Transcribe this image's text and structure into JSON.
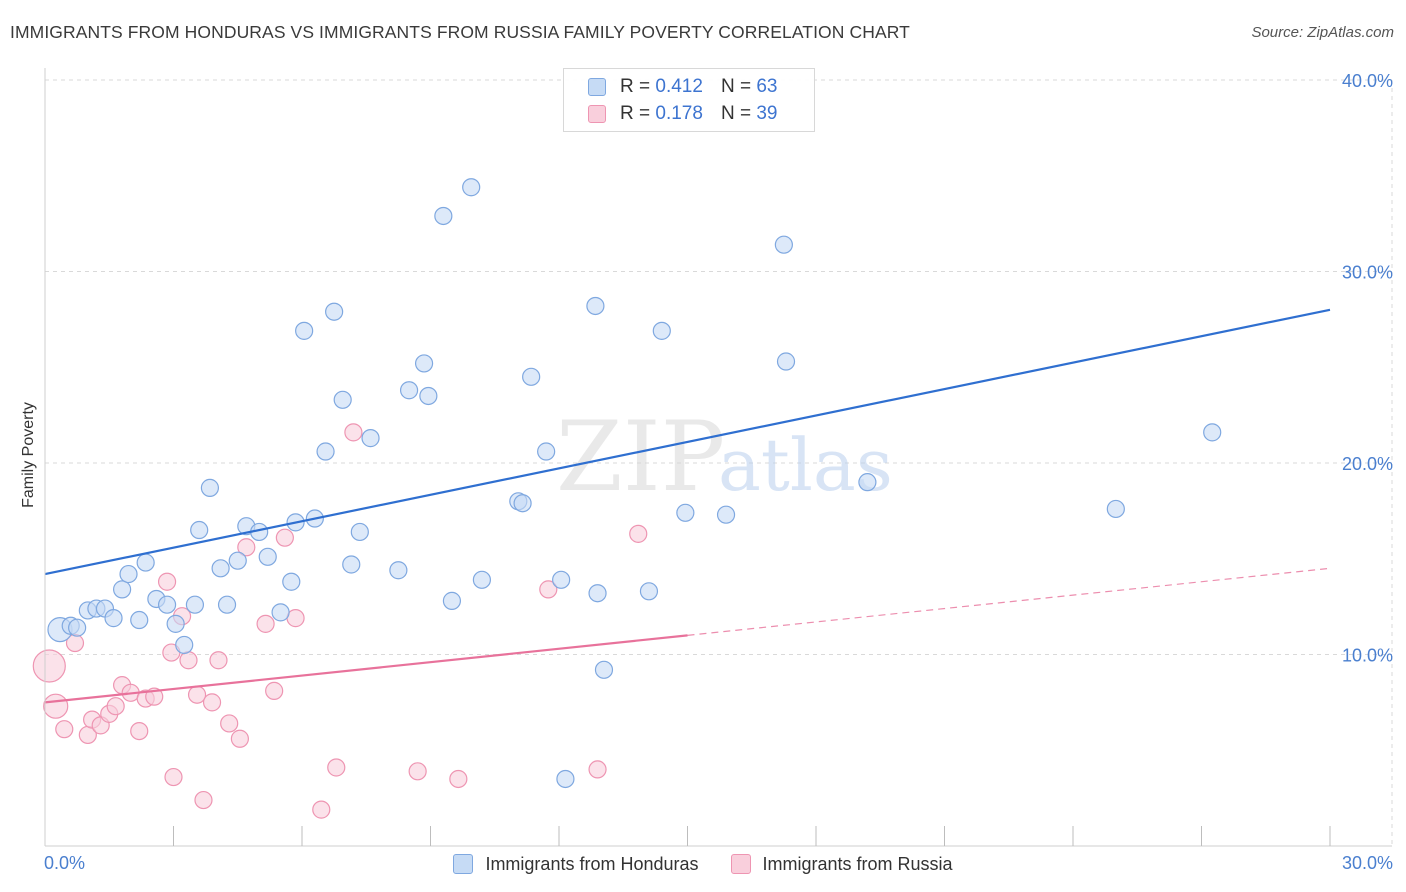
{
  "header": {
    "title": "IMMIGRANTS FROM HONDURAS VS IMMIGRANTS FROM RUSSIA FAMILY POVERTY CORRELATION CHART",
    "source": "Source: ZipAtlas.com"
  },
  "watermark": {
    "zip": "ZIP",
    "atlas": "atlas"
  },
  "legend": {
    "items": [
      {
        "r_label": "R =",
        "r_value": "0.412",
        "n_label": "N =",
        "n_value": "63"
      },
      {
        "r_label": "R =",
        "r_value": "0.178",
        "n_label": "N =",
        "n_value": "39"
      }
    ]
  },
  "bottom_legend": {
    "items": [
      {
        "label": "Immigrants from Honduras"
      },
      {
        "label": "Immigrants from Russia"
      }
    ]
  },
  "colors": {
    "honduras_fill": "#c6dbf5",
    "honduras_stroke": "#7fa8e0",
    "honduras_line": "#2f6fd0",
    "russia_fill": "#f9cfdc",
    "russia_stroke": "#ee95b2",
    "russia_line": "#e8729b",
    "grid": "#d9d9d9",
    "tick_text": "#4a7fcf"
  },
  "chart_data": {
    "type": "scatter",
    "title": "IMMIGRANTS FROM HONDURAS VS IMMIGRANTS FROM RUSSIA FAMILY POVERTY CORRELATION CHART",
    "xlabel": "",
    "ylabel": "Family Poverty",
    "xlim": [
      0,
      30
    ],
    "ylim": [
      0,
      40
    ],
    "x_tick_labels": [
      "0.0%",
      "30.0%"
    ],
    "y_ticks": [
      10,
      20,
      30,
      40
    ],
    "y_tick_labels": [
      "10.0%",
      "20.0%",
      "30.0%",
      "40.0%"
    ],
    "grid": true,
    "series": [
      {
        "name": "Immigrants from Honduras",
        "r": 0.412,
        "n": 63,
        "trend": {
          "x": [
            0,
            30
          ],
          "y": [
            14.2,
            28.0
          ],
          "dashed_from": null
        },
        "points": [
          [
            0.35,
            11.3,
            "l"
          ],
          [
            0.6,
            11.5
          ],
          [
            0.75,
            11.4
          ],
          [
            1.0,
            12.3
          ],
          [
            1.2,
            12.4
          ],
          [
            1.4,
            12.4
          ],
          [
            1.6,
            11.9
          ],
          [
            1.8,
            13.4
          ],
          [
            1.95,
            14.2
          ],
          [
            2.2,
            11.8
          ],
          [
            2.35,
            14.8
          ],
          [
            2.6,
            12.9
          ],
          [
            2.85,
            12.6
          ],
          [
            3.05,
            11.6
          ],
          [
            3.25,
            10.5
          ],
          [
            3.5,
            12.6
          ],
          [
            3.6,
            16.5
          ],
          [
            3.85,
            18.7
          ],
          [
            4.1,
            14.5
          ],
          [
            4.25,
            12.6
          ],
          [
            4.5,
            14.9
          ],
          [
            4.7,
            16.7
          ],
          [
            5.0,
            16.4
          ],
          [
            5.2,
            15.1
          ],
          [
            5.5,
            12.2
          ],
          [
            5.75,
            13.8
          ],
          [
            5.85,
            16.9
          ],
          [
            6.05,
            26.9
          ],
          [
            6.3,
            17.1
          ],
          [
            6.55,
            20.6
          ],
          [
            6.75,
            27.9
          ],
          [
            6.95,
            23.3
          ],
          [
            7.15,
            14.7
          ],
          [
            7.35,
            16.4
          ],
          [
            7.6,
            21.3
          ],
          [
            8.25,
            14.4
          ],
          [
            8.5,
            23.8
          ],
          [
            8.85,
            25.2
          ],
          [
            8.95,
            23.5
          ],
          [
            9.3,
            32.9
          ],
          [
            9.5,
            12.8
          ],
          [
            9.95,
            34.4
          ],
          [
            10.2,
            13.9
          ],
          [
            11.05,
            18.0
          ],
          [
            11.15,
            17.9
          ],
          [
            11.35,
            24.5
          ],
          [
            11.7,
            20.6
          ],
          [
            12.05,
            13.9
          ],
          [
            12.15,
            3.5
          ],
          [
            12.85,
            28.2
          ],
          [
            12.9,
            13.2
          ],
          [
            13.05,
            9.2
          ],
          [
            14.1,
            13.3
          ],
          [
            14.4,
            26.9
          ],
          [
            14.95,
            17.4
          ],
          [
            15.9,
            17.3
          ],
          [
            17.25,
            31.4
          ],
          [
            17.3,
            25.3
          ],
          [
            19.2,
            19.0
          ],
          [
            25.0,
            17.6
          ],
          [
            27.25,
            21.6
          ]
        ]
      },
      {
        "name": "Immigrants from Russia",
        "r": 0.178,
        "n": 39,
        "trend": {
          "x": [
            0,
            30
          ],
          "y": [
            7.5,
            14.5
          ],
          "dashed_from": 15.0
        },
        "points": [
          [
            0.1,
            9.4,
            "xl"
          ],
          [
            0.25,
            7.3,
            "l"
          ],
          [
            0.45,
            6.1
          ],
          [
            0.7,
            10.6
          ],
          [
            1.0,
            5.8
          ],
          [
            1.1,
            6.6
          ],
          [
            1.3,
            6.3
          ],
          [
            1.5,
            6.9
          ],
          [
            1.65,
            7.3
          ],
          [
            1.8,
            8.4
          ],
          [
            2.0,
            8.0
          ],
          [
            2.2,
            6.0
          ],
          [
            2.35,
            7.7
          ],
          [
            2.55,
            7.8
          ],
          [
            2.85,
            13.8
          ],
          [
            2.95,
            10.1
          ],
          [
            3.0,
            3.6
          ],
          [
            3.2,
            12.0
          ],
          [
            3.35,
            9.7
          ],
          [
            3.55,
            7.9
          ],
          [
            3.7,
            2.4
          ],
          [
            3.9,
            7.5
          ],
          [
            4.05,
            9.7
          ],
          [
            4.3,
            6.4
          ],
          [
            4.55,
            5.6
          ],
          [
            4.7,
            15.6
          ],
          [
            5.15,
            11.6
          ],
          [
            5.35,
            8.1
          ],
          [
            5.6,
            16.1
          ],
          [
            5.85,
            11.9
          ],
          [
            6.45,
            1.9
          ],
          [
            6.8,
            4.1
          ],
          [
            7.2,
            21.6
          ],
          [
            8.7,
            3.9
          ],
          [
            9.65,
            3.5
          ],
          [
            11.75,
            13.4
          ],
          [
            12.9,
            4.0
          ],
          [
            13.85,
            16.3
          ]
        ]
      }
    ]
  }
}
